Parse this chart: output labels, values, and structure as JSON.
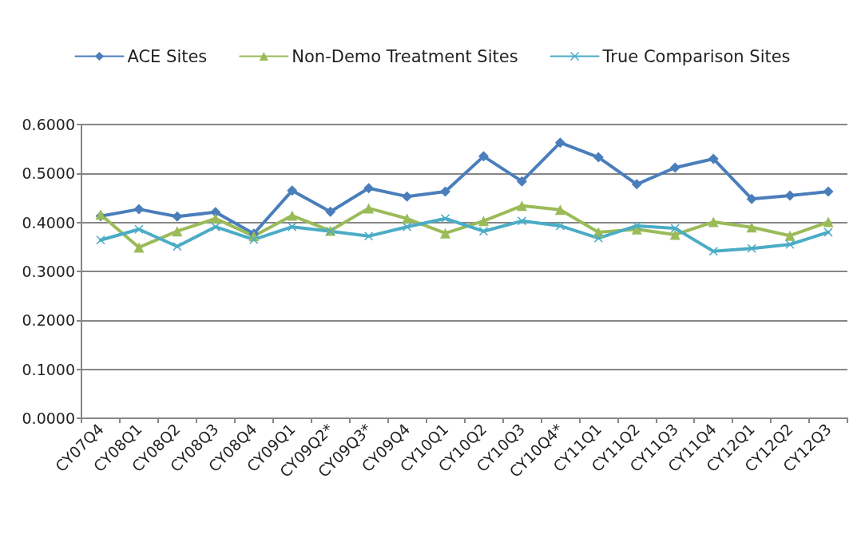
{
  "chart_data": {
    "type": "line",
    "categories": [
      "CY07Q4",
      "CY08Q1",
      "CY08Q2",
      "CY08Q3",
      "CY08Q4",
      "CY09Q1",
      "CY09Q2*",
      "CY09Q3*",
      "CY09Q4",
      "CY10Q1",
      "CY10Q2",
      "CY10Q3",
      "CY10Q4*",
      "CY11Q1",
      "CY11Q2",
      "CY11Q3",
      "CY11Q4",
      "CY12Q1",
      "CY12Q2",
      "CY12Q3"
    ],
    "series": [
      {
        "name": "ACE Sites",
        "color": "#4a7ebb",
        "marker": "diamond",
        "values": [
          0.413,
          0.427,
          0.412,
          0.421,
          0.377,
          0.465,
          0.422,
          0.47,
          0.453,
          0.463,
          0.535,
          0.484,
          0.563,
          0.533,
          0.478,
          0.512,
          0.53,
          0.448,
          0.455,
          0.463
        ]
      },
      {
        "name": "Non-Demo Treatment Sites",
        "color": "#9bbb59",
        "marker": "triangle",
        "values": [
          0.416,
          0.349,
          0.382,
          0.408,
          0.372,
          0.414,
          0.383,
          0.429,
          0.408,
          0.378,
          0.403,
          0.434,
          0.426,
          0.38,
          0.386,
          0.375,
          0.401,
          0.39,
          0.373,
          0.401
        ]
      },
      {
        "name": "True Comparison Sites",
        "color": "#4bacc6",
        "marker": "cross",
        "values": [
          0.364,
          0.386,
          0.351,
          0.391,
          0.365,
          0.391,
          0.382,
          0.372,
          0.391,
          0.408,
          0.382,
          0.403,
          0.393,
          0.368,
          0.393,
          0.388,
          0.341,
          0.347,
          0.355,
          0.38
        ]
      }
    ],
    "ylim": [
      0,
      0.6
    ],
    "yticks": [
      {
        "value": 0,
        "label": "0.0000"
      },
      {
        "value": 0.1,
        "label": "0.1000"
      },
      {
        "value": 0.2,
        "label": "0.2000"
      },
      {
        "value": 0.3,
        "label": "0.3000"
      },
      {
        "value": 0.4,
        "label": "0.4000"
      },
      {
        "value": 0.5,
        "label": "0.5000"
      },
      {
        "value": 0.6,
        "label": "0.6000"
      }
    ],
    "grid": "y",
    "legend": "top",
    "line_style": "solid"
  }
}
